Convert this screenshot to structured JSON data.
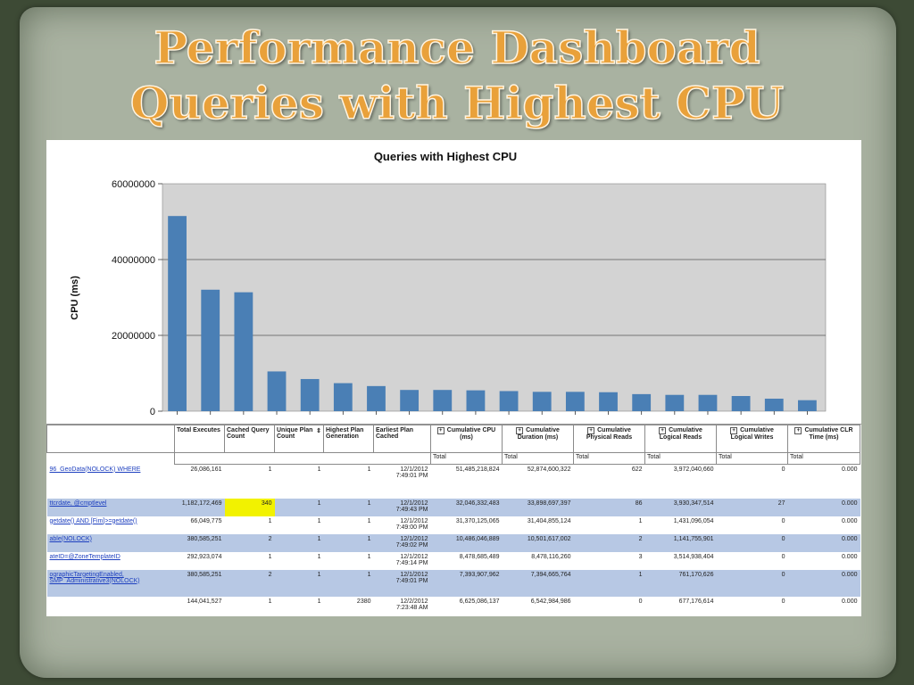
{
  "slide": {
    "title_line1": "Performance Dashboard",
    "title_line2": "Queries with Highest CPU"
  },
  "chart_data": {
    "type": "bar",
    "title": "Queries with Highest CPU",
    "xlabel": "",
    "ylabel": "CPU (ms)",
    "ylim": [
      0,
      60000000
    ],
    "yticks": [
      "0",
      "20000000",
      "40000000",
      "60000000"
    ],
    "grid": true,
    "color": "#4a7fb5",
    "values": [
      51485218,
      32046332,
      31370125,
      10486046,
      8478685,
      7393907,
      6625086,
      5600000,
      5600000,
      5500000,
      5300000,
      5100000,
      5100000,
      5000000,
      4500000,
      4300000,
      4300000,
      4000000,
      3300000,
      2900000
    ]
  },
  "report": {
    "columns": {
      "query": "",
      "total_executes": "Total Executes",
      "cached_query_count": "Cached Query Count",
      "unique_plan_count": "Unique Plan Count",
      "highest_plan_generation": "Highest Plan Generation",
      "earliest_plan_cached": "Earliest Plan Cached",
      "cumulative_cpu": "Cumulative CPU (ms)",
      "cumulative_duration": "Cumulative Duration (ms)",
      "cumulative_physical_reads": "Cumulative Physical Reads",
      "cumulative_logical_reads": "Cumulative Logical Reads",
      "cumulative_logical_writes": "Cumulative Logical Writes",
      "cumulative_clr_time": "Cumulative CLR Time (ms)"
    },
    "subheader": "Total",
    "rows": [
      {
        "query": "96_GeoData(NOLOCK) WHERE",
        "total_executes": "26,086,161",
        "cached": "1",
        "unique": "1",
        "gen": "1",
        "cached_date": "12/1/2012",
        "cached_time": "7:49:01 PM",
        "cpu": "51,485,218,824",
        "duration": "52,874,600,322",
        "phys": "622",
        "logical": "3,972,040,660",
        "writes": "0",
        "clr": "0.000"
      },
      {
        "query": "ttcrdate, @cmptlevel",
        "total_executes": "1,182,172,469",
        "cached": "340",
        "unique": "1",
        "gen": "1",
        "cached_date": "12/1/2012",
        "cached_time": "7:49:43 PM",
        "cpu": "32,046,332,483",
        "duration": "33,898,697,397",
        "phys": "86",
        "logical": "3,930,347,514",
        "writes": "27",
        "clr": "0.000"
      },
      {
        "query": "getdate() AND [Fim]>=getdate()",
        "total_executes": "66,049,775",
        "cached": "1",
        "unique": "1",
        "gen": "1",
        "cached_date": "12/1/2012",
        "cached_time": "7:49:00 PM",
        "cpu": "31,370,125,065",
        "duration": "31,404,855,124",
        "phys": "1",
        "logical": "1,431,096,054",
        "writes": "0",
        "clr": "0.000"
      },
      {
        "query": "able(NOLOCK)",
        "total_executes": "380,585,251",
        "cached": "2",
        "unique": "1",
        "gen": "1",
        "cached_date": "12/1/2012",
        "cached_time": "7:49:02 PM",
        "cpu": "10,486,046,889",
        "duration": "10,501,617,002",
        "phys": "2",
        "logical": "1,141,755,901",
        "writes": "0",
        "clr": "0.000"
      },
      {
        "query": "ateID=@ZoneTemplateID",
        "total_executes": "292,923,074",
        "cached": "1",
        "unique": "1",
        "gen": "1",
        "cached_date": "12/1/2012",
        "cached_time": "7:49:14 PM",
        "cpu": "8,478,685,489",
        "duration": "8,478,116,260",
        "phys": "3",
        "logical": "3,514,938,404",
        "writes": "0",
        "clr": "0.000"
      },
      {
        "query": "ographicTargetingEnabled,",
        "query2": "SMP_Administrative3(NOLOCK)",
        "total_executes": "380,585,251",
        "cached": "2",
        "unique": "1",
        "gen": "1",
        "cached_date": "12/1/2012",
        "cached_time": "7:49:01 PM",
        "cpu": "7,393,907,962",
        "duration": "7,394,665,764",
        "phys": "1",
        "logical": "761,170,626",
        "writes": "0",
        "clr": "0.000"
      },
      {
        "query": "",
        "total_executes": "144,041,527",
        "cached": "1",
        "unique": "1",
        "gen": "2380",
        "cached_date": "12/2/2012",
        "cached_time": "7:23:48 AM",
        "cpu": "6,625,086,137",
        "duration": "6,542,984,986",
        "phys": "0",
        "logical": "677,176,614",
        "writes": "0",
        "clr": "0.000"
      }
    ]
  }
}
